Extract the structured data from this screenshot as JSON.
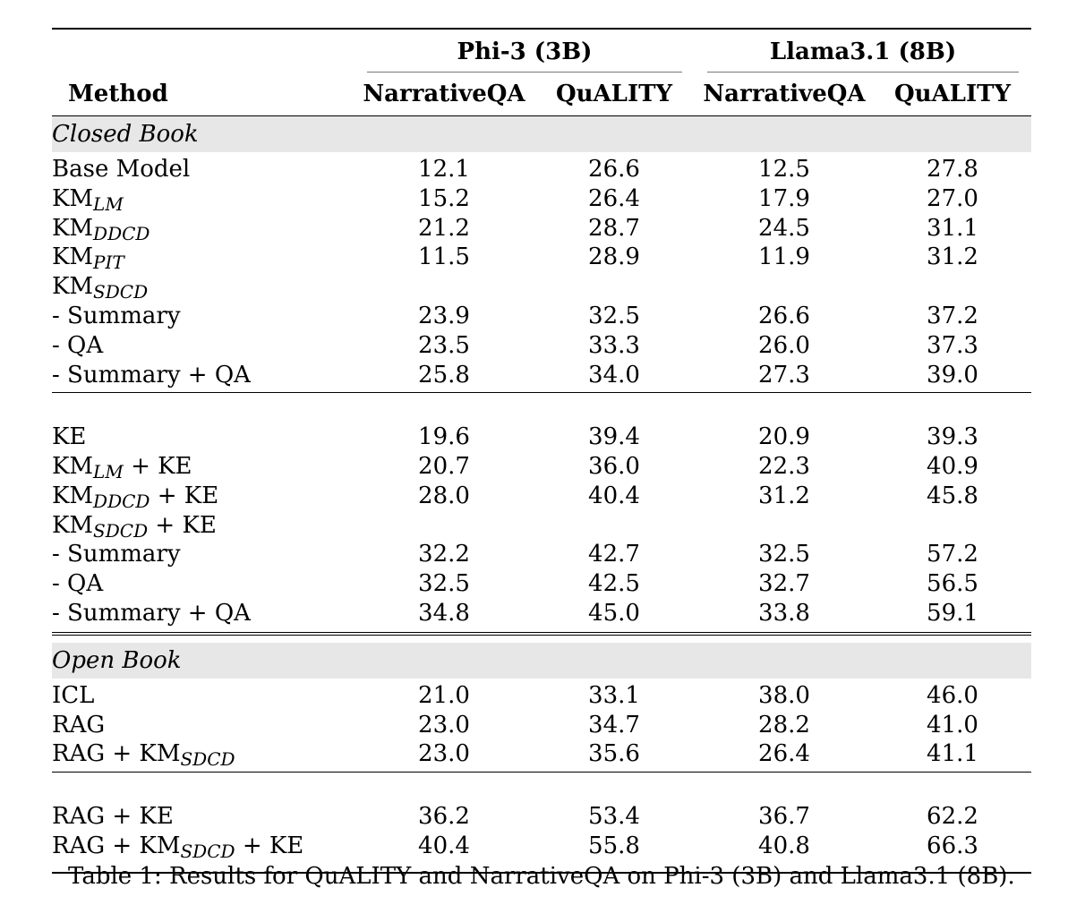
{
  "table": {
    "group_headers": [
      "Phi-3 (3B)",
      "Llama3.1 (8B)"
    ],
    "column_headers": [
      "Method",
      "NarrativeQA",
      "QuALITY",
      "NarrativeQA",
      "QuALITY"
    ],
    "sections": [
      {
        "title": "Closed Book",
        "blocks": [
          [
            {
              "base": "Base Model",
              "sub": "",
              "suffix": "",
              "values": [
                "12.1",
                "26.6",
                "12.5",
                "27.8"
              ],
              "bold": false
            },
            {
              "base": "KM",
              "sub": "LM",
              "suffix": "",
              "values": [
                "15.2",
                "26.4",
                "17.9",
                "27.0"
              ],
              "bold": false
            },
            {
              "base": "KM",
              "sub": "DDCD",
              "suffix": "",
              "values": [
                "21.2",
                "28.7",
                "24.5",
                "31.1"
              ],
              "bold": false
            },
            {
              "base": "KM",
              "sub": "PIT",
              "suffix": "",
              "values": [
                "11.5",
                "28.9",
                "11.9",
                "31.2"
              ],
              "bold": false
            },
            {
              "base": "KM",
              "sub": "SDCD",
              "suffix": "",
              "values": [
                "",
                "",
                "",
                ""
              ],
              "bold": false
            },
            {
              "base": "- Summary",
              "sub": "",
              "suffix": "",
              "values": [
                "23.9",
                "32.5",
                "26.6",
                "37.2"
              ],
              "bold": false
            },
            {
              "base": "- QA",
              "sub": "",
              "suffix": "",
              "values": [
                "23.5",
                "33.3",
                "26.0",
                "37.3"
              ],
              "bold": false
            },
            {
              "base": "- Summary + QA",
              "sub": "",
              "suffix": "",
              "values": [
                "25.8",
                "34.0",
                "27.3",
                "39.0"
              ],
              "bold": true
            }
          ],
          [
            {
              "base": "KE",
              "sub": "",
              "suffix": "",
              "values": [
                "19.6",
                "39.4",
                "20.9",
                "39.3"
              ],
              "bold": false
            },
            {
              "base": "KM",
              "sub": "LM",
              "suffix": " + KE",
              "values": [
                "20.7",
                "36.0",
                "22.3",
                "40.9"
              ],
              "bold": false
            },
            {
              "base": "KM",
              "sub": "DDCD",
              "suffix": " + KE",
              "values": [
                "28.0",
                "40.4",
                "31.2",
                "45.8"
              ],
              "bold": false
            },
            {
              "base": "KM",
              "sub": "SDCD",
              "suffix": " + KE",
              "values": [
                "",
                "",
                "",
                ""
              ],
              "bold": false
            },
            {
              "base": "- Summary",
              "sub": "",
              "suffix": "",
              "values": [
                "32.2",
                "42.7",
                "32.5",
                "57.2"
              ],
              "bold": false
            },
            {
              "base": "- QA",
              "sub": "",
              "suffix": "",
              "values": [
                "32.5",
                "42.5",
                "32.7",
                "56.5"
              ],
              "bold": false
            },
            {
              "base": "- Summary + QA",
              "sub": "",
              "suffix": "",
              "values": [
                "34.8",
                "45.0",
                "33.8",
                "59.1"
              ],
              "bold": true
            }
          ]
        ]
      },
      {
        "title": "Open Book",
        "blocks": [
          [
            {
              "base": "ICL",
              "sub": "",
              "suffix": "",
              "values": [
                "21.0",
                "33.1",
                "38.0",
                "46.0"
              ],
              "bold": false
            },
            {
              "base": "RAG",
              "sub": "",
              "suffix": "",
              "values": [
                "23.0",
                "34.7",
                "28.2",
                "41.0"
              ],
              "bold": false
            },
            {
              "base": "RAG + KM",
              "sub": "SDCD",
              "suffix": "",
              "values": [
                "23.0",
                "35.6",
                "26.4",
                "41.1"
              ],
              "bold": false
            }
          ],
          [
            {
              "base": "RAG + KE",
              "sub": "",
              "suffix": "",
              "values": [
                "36.2",
                "53.4",
                "36.7",
                "62.2"
              ],
              "bold": false
            },
            {
              "base": "RAG + KM",
              "sub": "SDCD",
              "suffix": " + KE",
              "values": [
                "40.4",
                "55.8",
                "40.8",
                "66.3"
              ],
              "bold": true
            }
          ]
        ]
      }
    ]
  },
  "caption": "Table 1: Results for QuALITY and NarrativeQA on Phi-3 (3B) and Llama3.1 (8B)."
}
